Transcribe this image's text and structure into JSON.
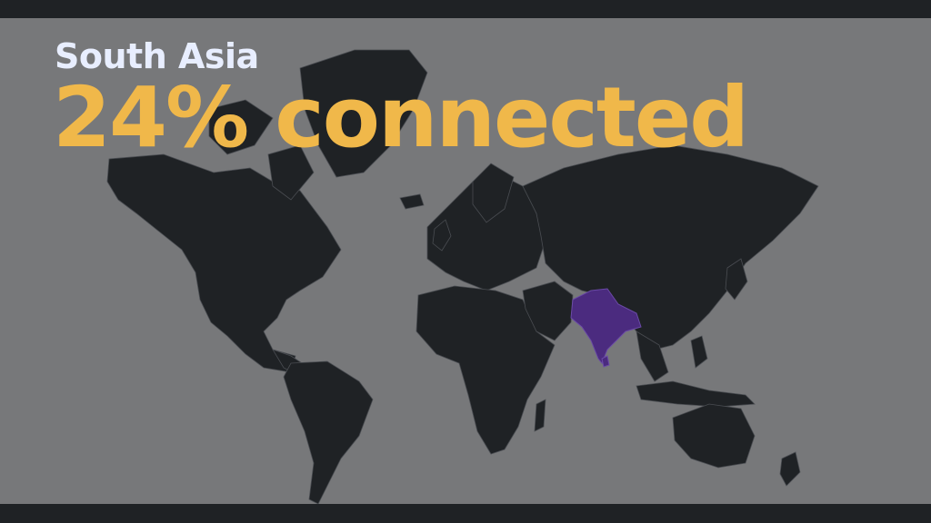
{
  "slide": {
    "region": "South Asia",
    "headline": "24% connected",
    "highlighted_region": "South Asia",
    "colors": {
      "background": "#77787a",
      "land": "#1f2225",
      "highlight": "#4b2b7f",
      "headline": "#f0b84a",
      "subtitle": "#e8eeff",
      "frame": "#1f2225"
    }
  }
}
